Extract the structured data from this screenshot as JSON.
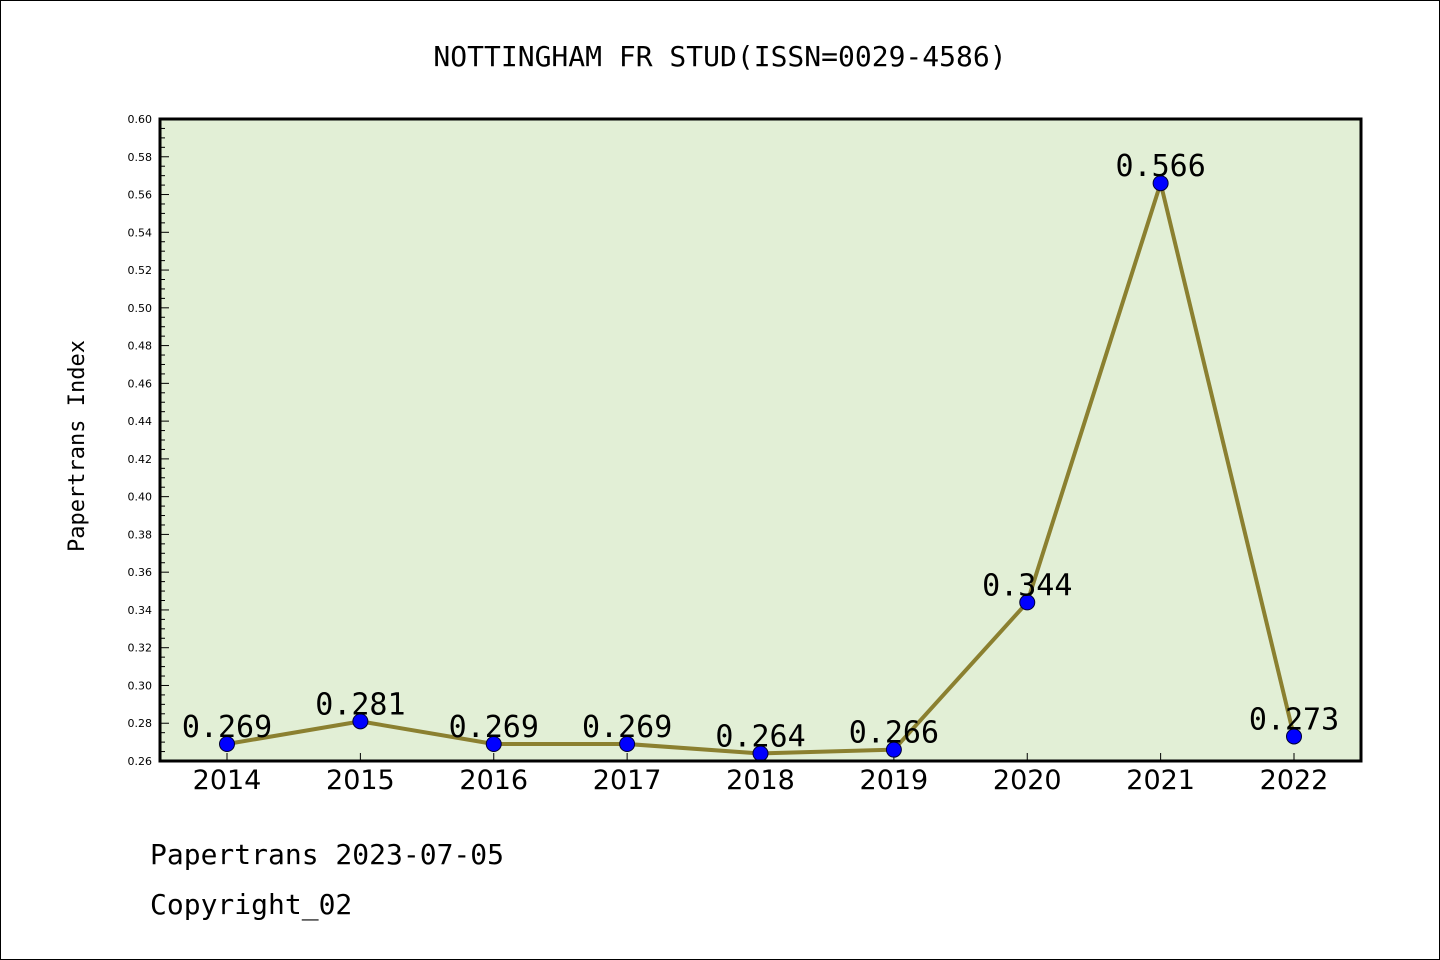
{
  "chart_data": {
    "type": "line",
    "title": "NOTTINGHAM FR STUD(ISSN=0029-4586)",
    "xlabel": "",
    "ylabel": "Papertrans Index",
    "categories": [
      "2014",
      "2015",
      "2016",
      "2017",
      "2018",
      "2019",
      "2020",
      "2021",
      "2022"
    ],
    "series": [
      {
        "values": [
          0.269,
          0.281,
          0.269,
          0.269,
          0.264,
          0.266,
          0.344,
          0.566,
          0.273
        ],
        "labels": [
          "0.269",
          "0.281",
          "0.269",
          "0.269",
          "0.264",
          "0.266",
          "0.344",
          "0.566",
          "0.273"
        ]
      }
    ],
    "ylim": [
      0.26,
      0.6
    ],
    "yticks": [
      "0.26",
      "0.28",
      "0.30",
      "0.32",
      "0.34",
      "0.36",
      "0.38",
      "0.40",
      "0.42",
      "0.44",
      "0.46",
      "0.48",
      "0.50",
      "0.52",
      "0.54",
      "0.56",
      "0.58",
      "0.60"
    ],
    "grid": false,
    "legend": "none",
    "colors": {
      "plot_background": "#e2efd6",
      "line": "#8b8030",
      "marker": "#0000ff",
      "frame": "#000000"
    }
  },
  "footer": {
    "date_line": "Papertrans 2023-07-05",
    "copyright_line": "Copyright_02"
  }
}
